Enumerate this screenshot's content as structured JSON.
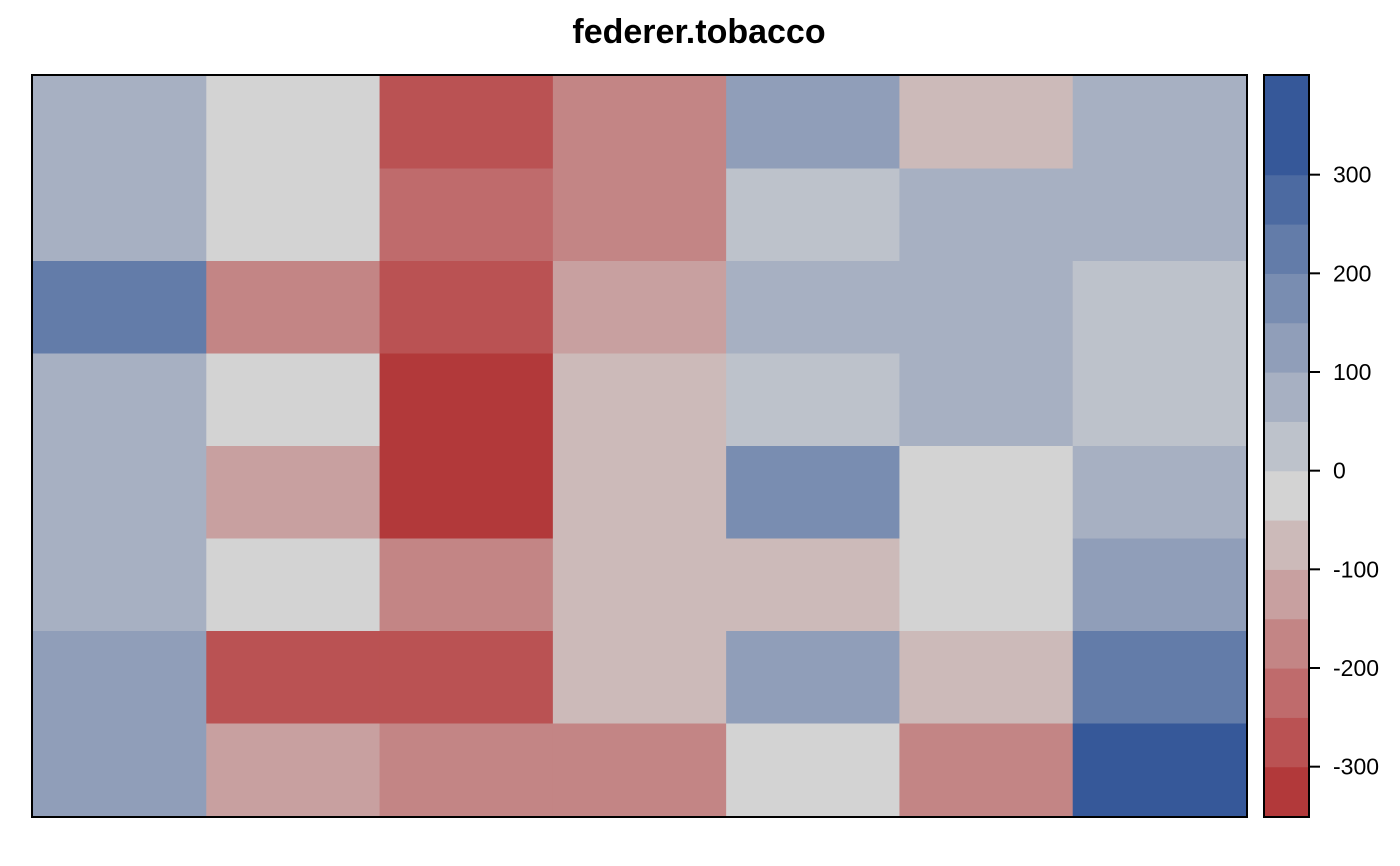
{
  "chart_data": {
    "type": "heatmap",
    "title": "federer.tobacco",
    "rows": 8,
    "columns": 7,
    "values": [
      [
        100,
        0,
        -250,
        -150,
        150,
        -50,
        100
      ],
      [
        100,
        0,
        -200,
        -150,
        50,
        100,
        100
      ],
      [
        250,
        -150,
        -250,
        -100,
        100,
        100,
        50
      ],
      [
        100,
        0,
        -300,
        -50,
        50,
        100,
        50
      ],
      [
        100,
        -100,
        -300,
        -50,
        200,
        0,
        100
      ],
      [
        100,
        0,
        -150,
        -50,
        -50,
        0,
        150
      ],
      [
        150,
        -250,
        -250,
        -50,
        150,
        -50,
        250
      ],
      [
        150,
        -100,
        -150,
        -150,
        0,
        -150,
        350
      ]
    ],
    "colorbar": {
      "range": [
        -350,
        400
      ],
      "ticks": [
        -300,
        -200,
        -100,
        0,
        100,
        200,
        300
      ],
      "tick_labels": [
        "-300",
        "-200",
        "-100",
        "0",
        "100",
        "200",
        "300"
      ],
      "bins": [
        {
          "from": -350,
          "to": -300,
          "color": "#B2393A"
        },
        {
          "from": -300,
          "to": -250,
          "color": "#BA5253"
        },
        {
          "from": -250,
          "to": -200,
          "color": "#BF6B6C"
        },
        {
          "from": -200,
          "to": -150,
          "color": "#C38585"
        },
        {
          "from": -150,
          "to": -100,
          "color": "#C8A0A0"
        },
        {
          "from": -100,
          "to": -50,
          "color": "#CCBAB9"
        },
        {
          "from": -50,
          "to": 0,
          "color": "#D3D3D3"
        },
        {
          "from": 0,
          "to": 50,
          "color": "#BDC2CB"
        },
        {
          "from": 50,
          "to": 100,
          "color": "#A7B0C2"
        },
        {
          "from": 100,
          "to": 150,
          "color": "#909EB9"
        },
        {
          "from": 150,
          "to": 200,
          "color": "#798DB1"
        },
        {
          "from": 200,
          "to": 250,
          "color": "#637CA9"
        },
        {
          "from": 250,
          "to": 300,
          "color": "#4C6AA1"
        },
        {
          "from": 300,
          "to": 350,
          "color": "#365899"
        },
        {
          "from": 350,
          "to": 400,
          "color": "#365899"
        }
      ]
    },
    "grid": false,
    "legend": "right"
  }
}
